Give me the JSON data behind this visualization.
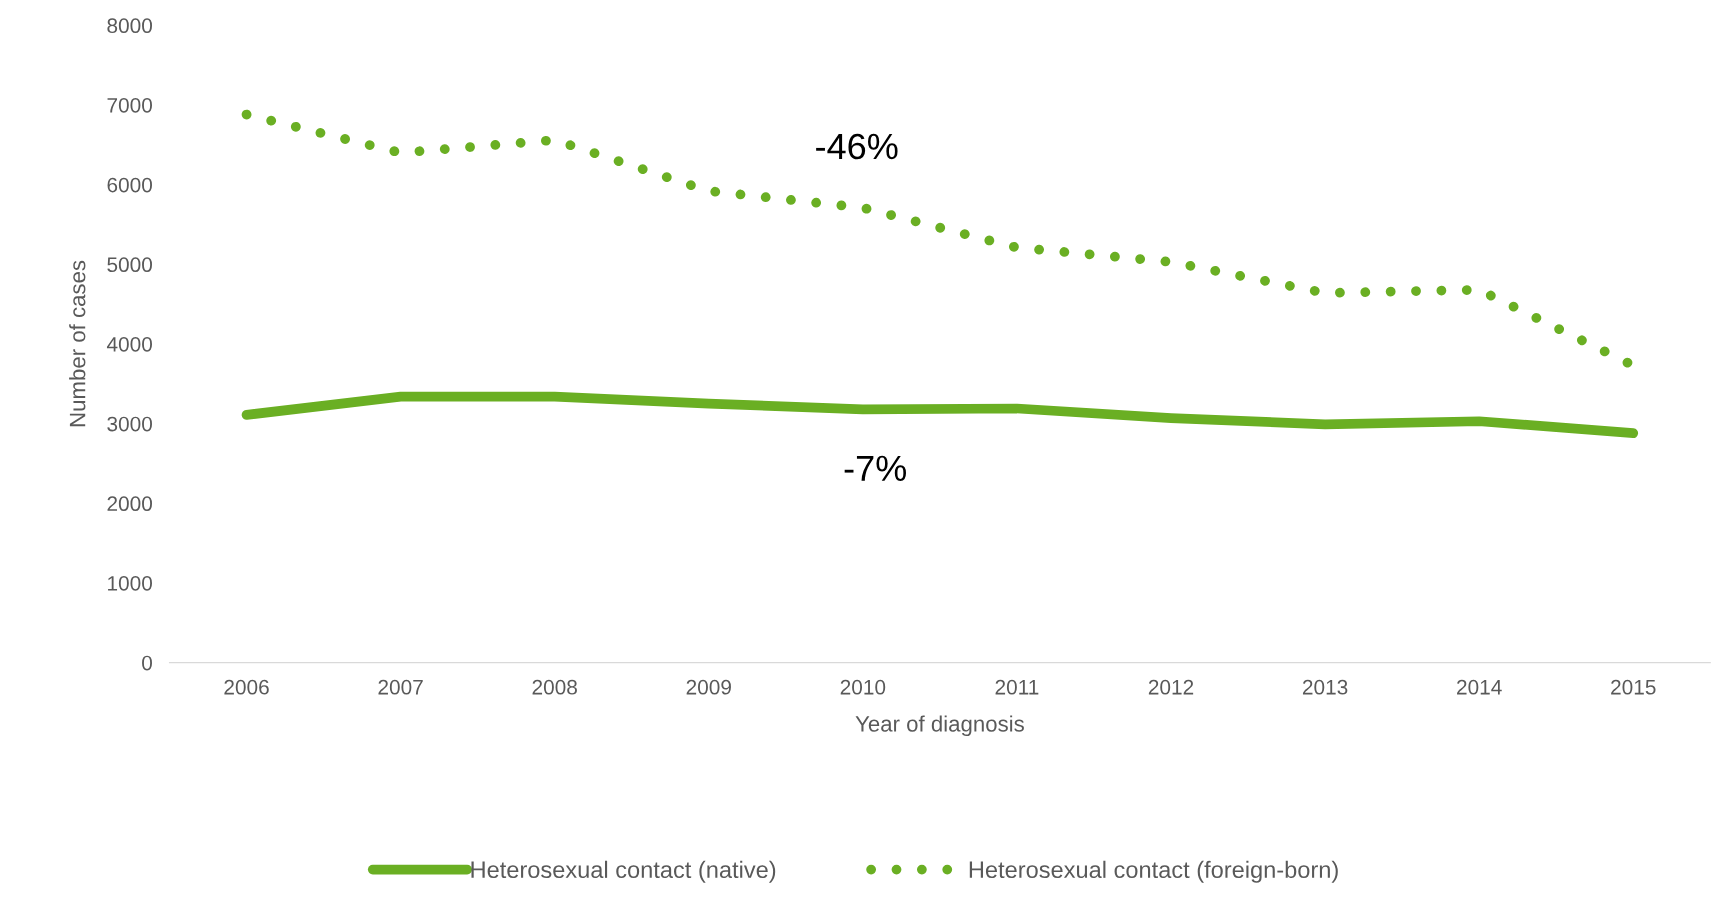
{
  "chart_data": {
    "type": "line",
    "xlabel": "Year of diagnosis",
    "ylabel": "Number of cases",
    "categories": [
      "2006",
      "2007",
      "2008",
      "2009",
      "2010",
      "2011",
      "2012",
      "2013",
      "2014",
      "2015"
    ],
    "series": [
      {
        "name": "Heterosexual contact (native)",
        "color": "#6aaf23",
        "line_style": "solid",
        "values": [
          3110,
          3340,
          3340,
          3250,
          3180,
          3190,
          3070,
          2990,
          3030,
          2880
        ]
      },
      {
        "name": "Heterosexual contact (foreign-born)",
        "color": "#6aaf23",
        "line_style": "dotted",
        "values": [
          6880,
          6400,
          6560,
          5920,
          5710,
          5210,
          5030,
          4640,
          4680,
          3730
        ]
      }
    ],
    "ylim": [
      0,
      8000
    ],
    "yticks": [
      0,
      1000,
      2000,
      3000,
      4000,
      5000,
      6000,
      7000,
      8000
    ],
    "grid": false,
    "legend": "bottom",
    "marker": "none",
    "annotations": [
      "-46%",
      "-7%"
    ]
  }
}
